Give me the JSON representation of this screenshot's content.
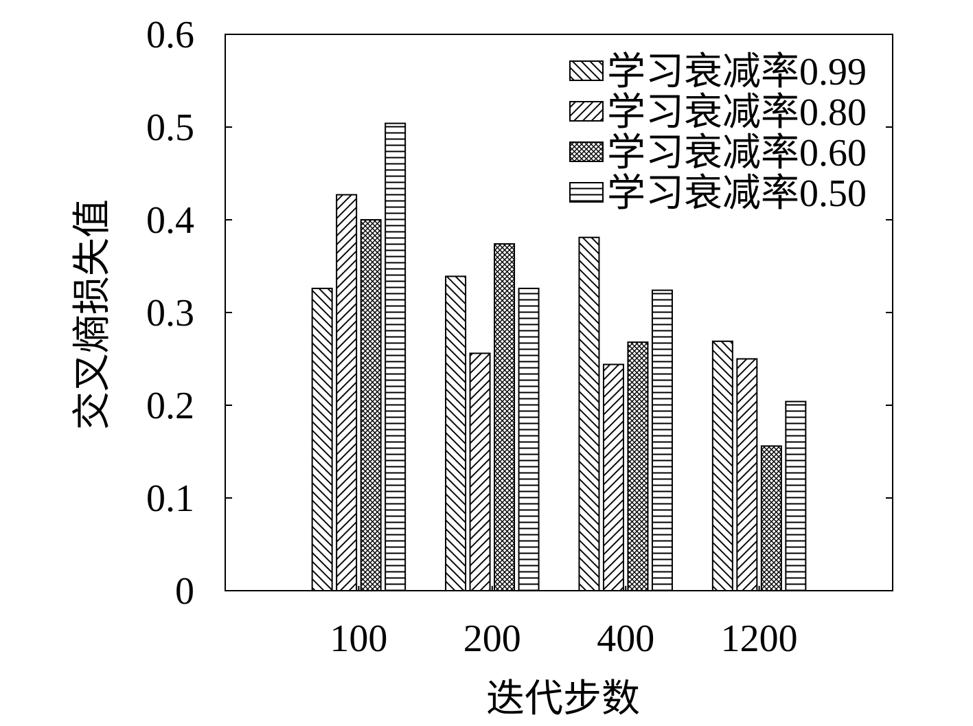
{
  "chart_data": {
    "type": "bar",
    "categories": [
      "100",
      "200",
      "400",
      "1200"
    ],
    "series": [
      {
        "name": "学习衰减率0.99",
        "values": [
          0.326,
          0.339,
          0.381,
          0.269
        ],
        "hatch": "backslash"
      },
      {
        "name": "学习衰减率0.80",
        "values": [
          0.427,
          0.256,
          0.244,
          0.25
        ],
        "hatch": "slash"
      },
      {
        "name": "学习衰减率0.60",
        "values": [
          0.4,
          0.374,
          0.268,
          0.156
        ],
        "hatch": "crosshatch"
      },
      {
        "name": "学习衰减率0.50",
        "values": [
          0.504,
          0.326,
          0.324,
          0.204
        ],
        "hatch": "horizontal"
      }
    ],
    "xlabel": "迭代步数",
    "ylabel": "交叉熵损失值",
    "ylim": [
      0,
      0.6
    ],
    "yticks": [
      0,
      0.1,
      0.2,
      0.3,
      0.4,
      0.5,
      0.6
    ],
    "ytick_labels": [
      "0",
      "0.1",
      "0.2",
      "0.3",
      "0.4",
      "0.5",
      "0.6"
    ],
    "legend": "top-right",
    "grid": false,
    "colors": {
      "bar_fill": "#ffffff",
      "stroke": "#000000"
    }
  }
}
